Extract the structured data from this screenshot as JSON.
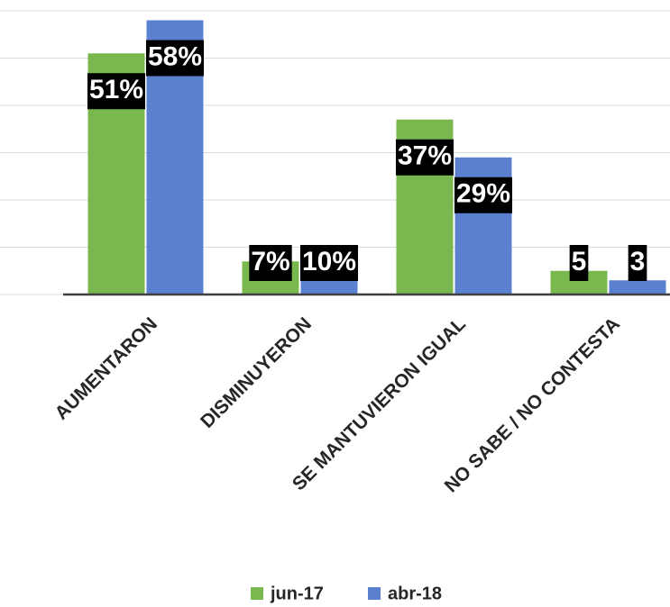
{
  "chart_data": {
    "type": "bar",
    "categories": [
      "AUMENTARON",
      "DISMINUYERON",
      "SE MANTUVIERON IGUAL",
      "NO SABE / NO CONTESTA"
    ],
    "series": [
      {
        "name": "jun-17",
        "color": "#78b84f",
        "values": [
          51,
          7,
          37,
          5
        ],
        "value_labels": [
          "51%",
          "7%",
          "37%",
          "5"
        ]
      },
      {
        "name": "abr-18",
        "color": "#5b80d0",
        "values": [
          58,
          10,
          29,
          3
        ],
        "value_labels": [
          "58%",
          "10%",
          "29%",
          "3"
        ]
      }
    ],
    "ylim": [
      0,
      60
    ],
    "yticks": [
      0,
      10,
      20,
      30,
      40,
      50,
      60
    ],
    "grid": true,
    "legend": "bottom"
  }
}
